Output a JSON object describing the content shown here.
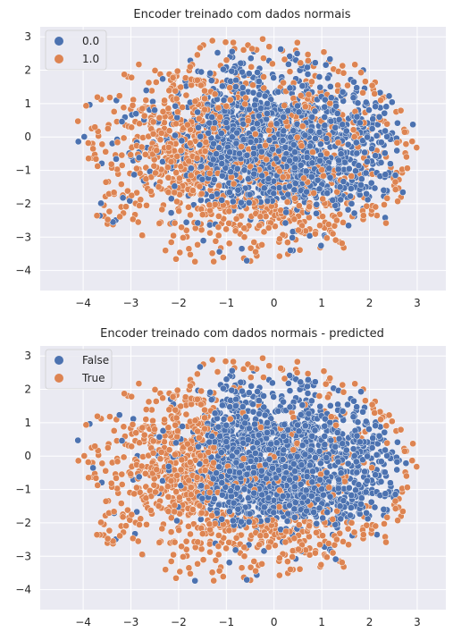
{
  "figure": {
    "background": "#ffffff",
    "axes_background": "#eaeaf2",
    "grid_color": "#ffffff"
  },
  "chart_data": [
    {
      "type": "scatter",
      "title": "Encoder treinado com dados normais",
      "xlabel": "",
      "ylabel": "",
      "xlim": [
        -4.9,
        3.6
      ],
      "ylim": [
        -4.6,
        3.3
      ],
      "xticks": [
        -4,
        -3,
        -2,
        -1,
        0,
        1,
        2,
        3
      ],
      "yticks": [
        -4,
        -3,
        -2,
        -1,
        0,
        1,
        2,
        3
      ],
      "grid": true,
      "legend_position": "top-left",
      "series": [
        {
          "name": "0.0",
          "color": "#4c72b0",
          "description": "dense cloud centered around x 0.5, y -0.3, spanning x -3.2..3.2, y -3.3..3.0"
        },
        {
          "name": "1.0",
          "color": "#dd8452",
          "description": "points spread over x -4.7..3.3, y -4.2..3.1; concentrated on the left (x < -1.5) and the bottom (y < -2)"
        }
      ]
    },
    {
      "type": "scatter",
      "title": "Encoder treinado com dados normais - predicted",
      "xlabel": "",
      "ylabel": "",
      "xlim": [
        -4.9,
        3.6
      ],
      "ylim": [
        -4.6,
        3.3
      ],
      "xticks": [
        -4,
        -3,
        -2,
        -1,
        0,
        1,
        2,
        3
      ],
      "yticks": [
        -4,
        -3,
        -2,
        -1,
        0,
        1,
        2,
        3
      ],
      "grid": true,
      "legend_position": "top-left",
      "series": [
        {
          "name": "False",
          "color": "#4c72b0",
          "description": "dense central cloud, x -2..2.5, y -2.5..2.8"
        },
        {
          "name": "True",
          "color": "#dd8452",
          "description": "outer band: left region (x < -1.8), bottom region (y < -2), and outer right rim"
        }
      ]
    }
  ]
}
